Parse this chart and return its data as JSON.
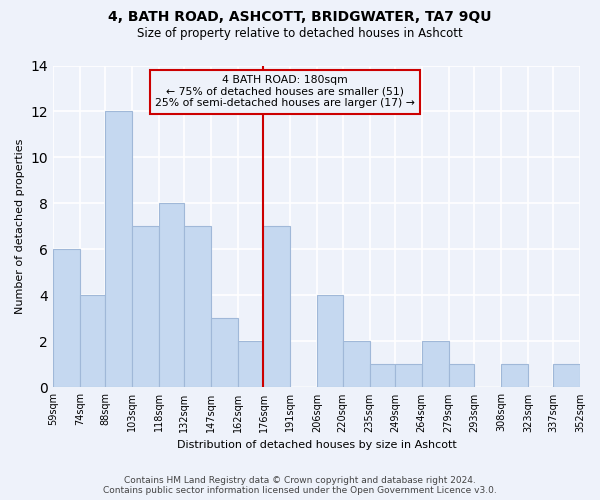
{
  "title": "4, BATH ROAD, ASHCOTT, BRIDGWATER, TA7 9QU",
  "subtitle": "Size of property relative to detached houses in Ashcott",
  "xlabel": "Distribution of detached houses by size in Ashcott",
  "ylabel": "Number of detached properties",
  "bar_color": "#c5d8f0",
  "bar_edgecolor": "#a0b8d8",
  "background_color": "#eef2fa",
  "grid_color": "#ffffff",
  "annotation_box_edgecolor": "#cc0000",
  "annotation_line_color": "#cc0000",
  "annotation_title": "4 BATH ROAD: 180sqm",
  "annotation_line1": "← 75% of detached houses are smaller (51)",
  "annotation_line2": "25% of semi-detached houses are larger (17) →",
  "property_line_x": 176,
  "bins": [
    59,
    74,
    88,
    103,
    118,
    132,
    147,
    162,
    176,
    191,
    206,
    220,
    235,
    249,
    264,
    279,
    293,
    308,
    323,
    337,
    352
  ],
  "counts": [
    6,
    4,
    12,
    7,
    8,
    7,
    3,
    2,
    7,
    0,
    4,
    2,
    1,
    1,
    2,
    1,
    0,
    1,
    0,
    1
  ],
  "ylim": [
    0,
    14
  ],
  "yticks": [
    0,
    2,
    4,
    6,
    8,
    10,
    12,
    14
  ],
  "footer_line1": "Contains HM Land Registry data © Crown copyright and database right 2024.",
  "footer_line2": "Contains public sector information licensed under the Open Government Licence v3.0."
}
